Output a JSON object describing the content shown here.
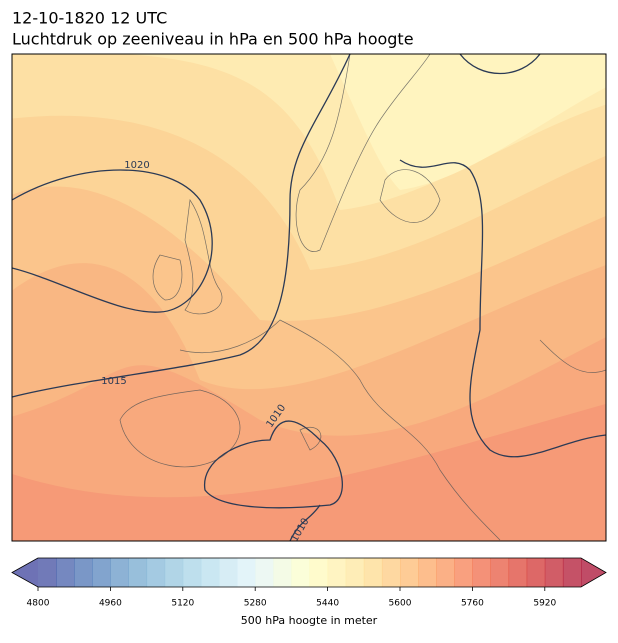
{
  "header": {
    "title": "12-10-1820 12 UTC",
    "subtitle": "Luchtdruk op zeeniveau in hPa en 500 hPa hoogte"
  },
  "map": {
    "isobar_labels": [
      "1020",
      "1015",
      "1010",
      "1010"
    ],
    "isobar_color": "#2b3a55"
  },
  "colorbar": {
    "range": [
      4800,
      6000
    ],
    "step": 40,
    "ticks": [
      4800,
      4960,
      5120,
      5280,
      5440,
      5600,
      5760,
      5920
    ],
    "label": "500 hPa hoogte in meter",
    "colors": [
      "#313695",
      "#4575b4",
      "#74add1",
      "#abd9e9",
      "#e0f3f8",
      "#ffffbf",
      "#fee090",
      "#fdae61",
      "#f46d43",
      "#d73027",
      "#a50026"
    ],
    "opacity": 0.7
  }
}
